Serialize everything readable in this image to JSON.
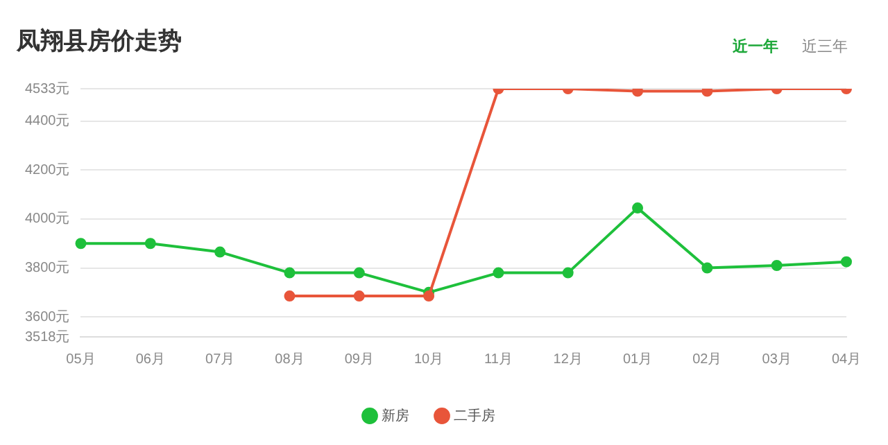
{
  "chart_data": {
    "type": "line",
    "title": "凤翔县房价走势",
    "annotations": [
      "近一年",
      "近三年"
    ],
    "categories": [
      "05月",
      "06月",
      "07月",
      "08月",
      "09月",
      "10月",
      "11月",
      "12月",
      "01月",
      "02月",
      "03月",
      "04月"
    ],
    "series": [
      {
        "name": "新房",
        "color": "#1ec03b",
        "values": [
          3900,
          3900,
          3865,
          3780,
          3780,
          3700,
          3780,
          3780,
          4045,
          3800,
          3810,
          3825
        ]
      },
      {
        "name": "二手房",
        "color": "#e8553a",
        "values": [
          null,
          null,
          null,
          3685,
          3685,
          3685,
          4533,
          4533,
          4523,
          4523,
          4533,
          4533
        ]
      }
    ],
    "ylim": [
      3518,
      4533
    ],
    "yticks": [
      {
        "value": 3518,
        "label": "3518元"
      },
      {
        "value": 3600,
        "label": "3600元"
      },
      {
        "value": 3800,
        "label": "3800元"
      },
      {
        "value": 4000,
        "label": "4000元"
      },
      {
        "value": 4200,
        "label": "4200元"
      },
      {
        "value": 4400,
        "label": "4400元"
      },
      {
        "value": 4533,
        "label": "4533元"
      }
    ],
    "grid": "y",
    "legend": "bottom",
    "marker": "circle",
    "line_style": "solid"
  }
}
